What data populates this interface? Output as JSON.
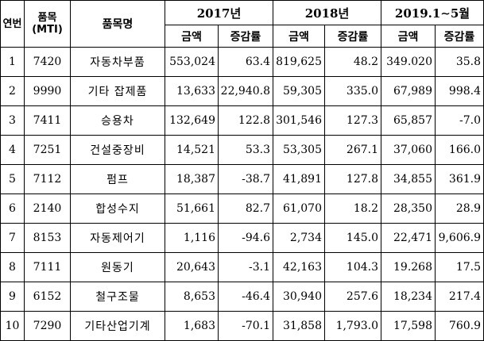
{
  "headers": {
    "rank": "연번",
    "code_line1": "품목",
    "code_line2": "(MTI)",
    "name": "품목명",
    "year_2017": "2017년",
    "year_2018": "2018년",
    "year_2019": "2019.1∼5월",
    "amount": "금액",
    "change": "증감률"
  },
  "rows": [
    {
      "rank": "1",
      "code": "7420",
      "name": "자동차부품",
      "a2017": "553,024",
      "c2017": "63.4",
      "a2018": "819,625",
      "c2018": "48.2",
      "a2019": "349.020",
      "c2019": "35.8"
    },
    {
      "rank": "2",
      "code": "9990",
      "name": "기타 잡제품",
      "a2017": "13,633",
      "c2017": "22,940.8",
      "a2018": "59,305",
      "c2018": "335.0",
      "a2019": "67,989",
      "c2019": "998.4"
    },
    {
      "rank": "3",
      "code": "7411",
      "name": "승용차",
      "a2017": "132,649",
      "c2017": "122.8",
      "a2018": "301,546",
      "c2018": "127.3",
      "a2019": "65,857",
      "c2019": "-7.0"
    },
    {
      "rank": "4",
      "code": "7251",
      "name": "건설중장비",
      "a2017": "14,521",
      "c2017": "53.3",
      "a2018": "53,305",
      "c2018": "267.1",
      "a2019": "37,060",
      "c2019": "166.0"
    },
    {
      "rank": "5",
      "code": "7112",
      "name": "펌프",
      "a2017": "18,387",
      "c2017": "-38.7",
      "a2018": "41,891",
      "c2018": "127.8",
      "a2019": "34,855",
      "c2019": "361.9"
    },
    {
      "rank": "6",
      "code": "2140",
      "name": "합성수지",
      "a2017": "51,661",
      "c2017": "82.7",
      "a2018": "61,070",
      "c2018": "18.2",
      "a2019": "28,350",
      "c2019": "28.9"
    },
    {
      "rank": "7",
      "code": "8153",
      "name": "자동제어기",
      "a2017": "1,116",
      "c2017": "-94.6",
      "a2018": "2,734",
      "c2018": "145.0",
      "a2019": "22,471",
      "c2019": "9,606.9"
    },
    {
      "rank": "8",
      "code": "7111",
      "name": "원동기",
      "a2017": "20,643",
      "c2017": "-3.1",
      "a2018": "42,163",
      "c2018": "104.3",
      "a2019": "19.268",
      "c2019": "17.5"
    },
    {
      "rank": "9",
      "code": "6152",
      "name": "철구조물",
      "a2017": "8,653",
      "c2017": "-46.4",
      "a2018": "30,940",
      "c2018": "257.6",
      "a2019": "18,234",
      "c2019": "217.4"
    },
    {
      "rank": "10",
      "code": "7290",
      "name": "기타산업기계",
      "a2017": "1,683",
      "c2017": "-70.1",
      "a2018": "31,858",
      "c2018": "1,793.0",
      "a2019": "17,598",
      "c2019": "760.9"
    }
  ]
}
